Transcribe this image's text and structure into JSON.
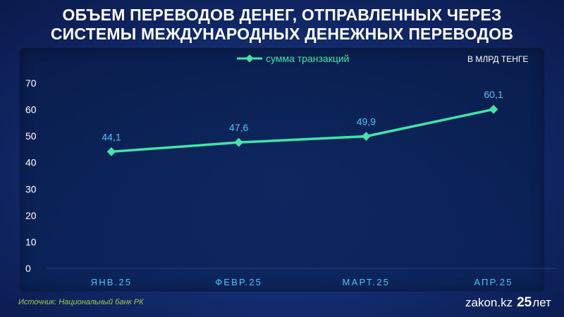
{
  "title_line1": "ОБЪЕМ ПЕРЕВОДОВ ДЕНЕГ, ОТПРАВЛЕННЫХ ЧЕРЕЗ",
  "title_line2": "СИСТЕМЫ МЕЖДУНАРОДНЫХ ДЕНЕЖНЫХ ПЕРЕВОДОВ",
  "unit_label": "В МЛРД ТЕНГЕ",
  "source": "Источник: Национальный банк РК",
  "brand": {
    "site": "zakon.kz",
    "number": "25",
    "suffix": "лет"
  },
  "colors": {
    "line": "#3fe6a8",
    "data_label": "#52c4f0",
    "tick": "#ffffff"
  },
  "chart_data": {
    "type": "line",
    "categories": [
      "ЯНВ.25",
      "ФЕВР.25",
      "МАРТ.25",
      "АПР.25"
    ],
    "series": [
      {
        "name": "сумма транзакций",
        "values": [
          44.1,
          47.6,
          49.9,
          60.1
        ],
        "labels": [
          "44,1",
          "47,6",
          "49,9",
          "60,1"
        ]
      }
    ],
    "yticks": [
      0,
      10,
      20,
      30,
      40,
      50,
      60,
      70
    ],
    "ylim": [
      0,
      70
    ],
    "grid": false,
    "legend": "top-center",
    "marker": "diamond"
  }
}
